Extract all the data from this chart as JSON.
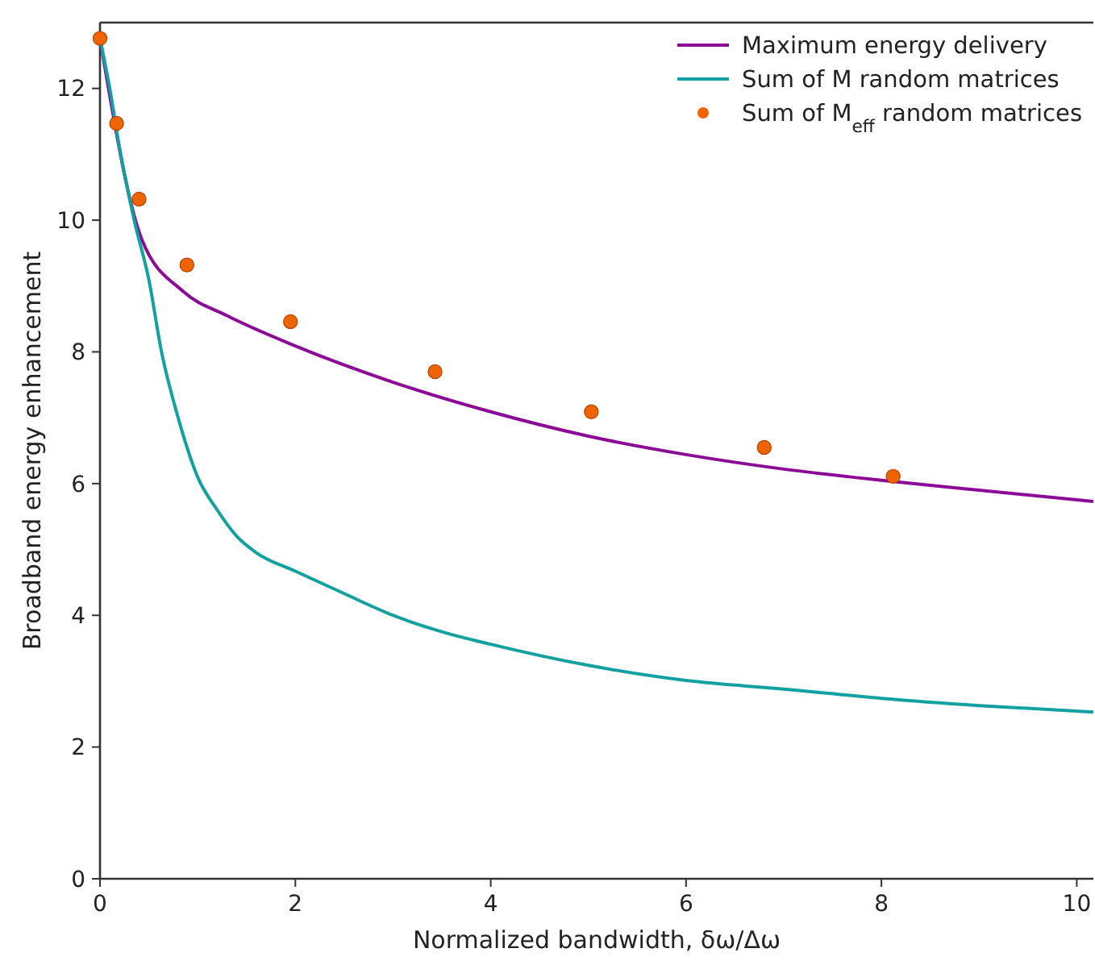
{
  "chart_data": {
    "type": "line",
    "xlabel": "Normalized bandwidth, δω/Δω",
    "ylabel": "Broadband energy enhancement",
    "xlim": [
      0,
      10.17
    ],
    "ylim": [
      0,
      13
    ],
    "xticks": [
      0,
      2,
      4,
      6,
      8,
      10
    ],
    "yticks": [
      0,
      2,
      4,
      6,
      8,
      10,
      12
    ],
    "grid": false,
    "legend": "top right",
    "series": [
      {
        "name": "Maximum energy delivery",
        "color": "#8b0a96",
        "marker": "none",
        "x": [
          0,
          0.43,
          0.85,
          1.3,
          2,
          3,
          4,
          5,
          6,
          7,
          8,
          9,
          10.17
        ],
        "values": [
          12.76,
          9.7,
          8.92,
          8.55,
          8.09,
          7.54,
          7.09,
          6.72,
          6.44,
          6.22,
          6.05,
          5.9,
          5.73
        ]
      },
      {
        "name": "Sum of M random matrices",
        "color": "#12a0a0",
        "marker": "none",
        "x": [
          0,
          0.1,
          0.2,
          0.35,
          0.5,
          0.63,
          0.8,
          1.0,
          1.2,
          1.4,
          1.6,
          2,
          2.5,
          3,
          3.5,
          4,
          5,
          6,
          7,
          8,
          9,
          10.17
        ],
        "values": [
          12.76,
          12,
          11.1,
          10,
          9.1,
          8,
          7.0,
          6.1,
          5.6,
          5.2,
          4.95,
          4.67,
          4.33,
          4.0,
          3.75,
          3.56,
          3.24,
          3.01,
          2.88,
          2.74,
          2.63,
          2.53
        ]
      },
      {
        "name": "Sum of M$_{eff}$ random matrices",
        "type": "scatter",
        "color": "#f06400",
        "marker": "circle",
        "x": [
          0,
          0.17,
          0.4,
          0.89,
          1.95,
          3.43,
          5.03,
          6.8,
          8.12
        ],
        "values": [
          12.76,
          11.47,
          10.32,
          9.32,
          8.46,
          7.7,
          7.09,
          6.55,
          6.11
        ]
      }
    ]
  }
}
